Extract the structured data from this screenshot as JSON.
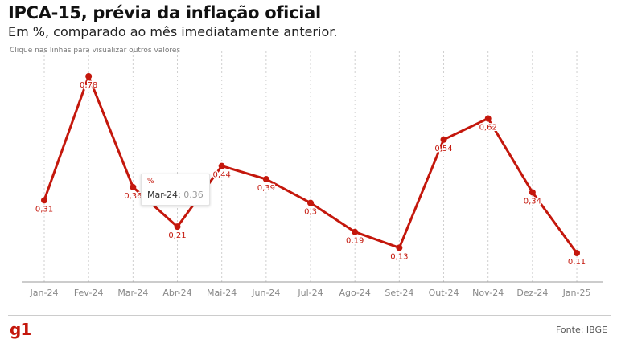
{
  "title": "IPCA-15, prévia da inflação oficial",
  "subtitle": "Em %, comparado ao mês imediatamente anterior.",
  "hint": "Clique nas linhas para visualizar outros valores",
  "source": "Fonte: IBGE",
  "logo": "g1",
  "colors": {
    "line": "#c4170c",
    "grid": "#cfcfcf",
    "axis": "#999999"
  },
  "tooltip": {
    "unit": "%",
    "label": "Mar-24:",
    "value": "0.36"
  },
  "chart_data": {
    "type": "line",
    "categories": [
      "Jan-24",
      "Fev-24",
      "Mar-24",
      "Abr-24",
      "Mai-24",
      "Jun-24",
      "Jul-24",
      "Ago-24",
      "Set-24",
      "Out-24",
      "Nov-24",
      "Dez-24",
      "Jan-25"
    ],
    "series": [
      {
        "values": [
          0.31,
          0.78,
          0.36,
          0.21,
          0.44,
          0.39,
          0.3,
          0.19,
          0.13,
          0.54,
          0.62,
          0.34,
          0.11
        ],
        "labels": [
          "0,31",
          "0,78",
          "0,36",
          "0,21",
          "0,44",
          "0,39",
          "0,3",
          "0,19",
          "0,13",
          "0,54",
          "0,62",
          "0,34",
          "0,11"
        ]
      }
    ],
    "grid": "vertical dashed",
    "legend": "none"
  }
}
